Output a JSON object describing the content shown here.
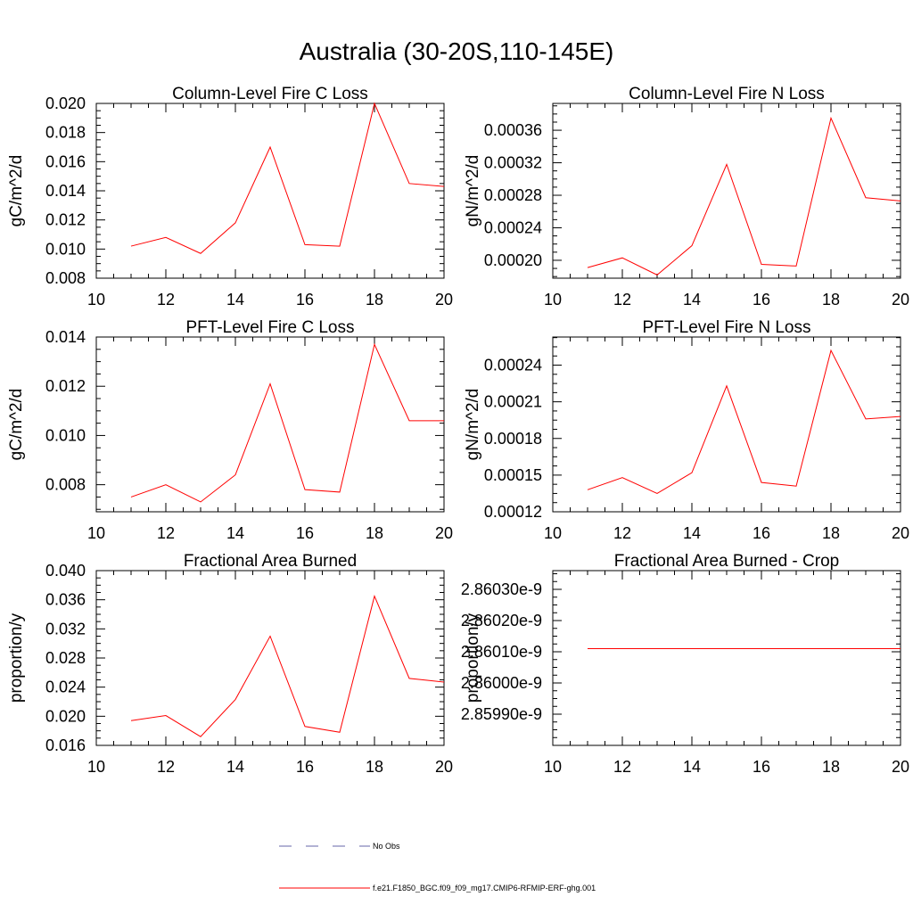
{
  "figure": {
    "title": "Australia (30-20S,110-145E)"
  },
  "legend": [
    {
      "label": "No Obs",
      "color": "#6666aa",
      "style": "dashed"
    },
    {
      "label": "f.e21.F1850_BGC.f09_f09_mg17.CMIP6-RFMIP-ERF-ghg.001",
      "color": "#ff0000",
      "style": "solid"
    }
  ],
  "chart_data": [
    {
      "type": "line",
      "title": "Column-Level Fire C Loss",
      "xlabel": "",
      "ylabel": "gC/m^2/d",
      "xlim": [
        10,
        20
      ],
      "ylim": [
        0.008,
        0.02
      ],
      "xticks": [
        "10",
        "12",
        "14",
        "16",
        "18",
        "20"
      ],
      "yticks": [
        "0.008",
        "0.010",
        "0.012",
        "0.014",
        "0.016",
        "0.018",
        "0.020"
      ],
      "series": [
        {
          "name": "f.e21.F1850_BGC.f09_f09_mg17.CMIP6-RFMIP-ERF-ghg.001",
          "color": "#ff0000",
          "x": [
            11,
            12,
            13,
            14,
            15,
            16,
            17,
            18,
            19,
            20
          ],
          "values": [
            0.0102,
            0.0108,
            0.0097,
            0.0118,
            0.017,
            0.0103,
            0.0102,
            0.02,
            0.0145,
            0.0143
          ]
        }
      ]
    },
    {
      "type": "line",
      "title": "Column-Level Fire N Loss",
      "xlabel": "",
      "ylabel": "gN/m^2/d",
      "xlim": [
        10,
        20
      ],
      "ylim": [
        0.000178,
        0.000393
      ],
      "xticks": [
        "10",
        "12",
        "14",
        "16",
        "18",
        "20"
      ],
      "yticks": [
        "0.00020",
        "0.00024",
        "0.00028",
        "0.00032",
        "0.00036"
      ],
      "series": [
        {
          "name": "f.e21.F1850_BGC.f09_f09_mg17.CMIP6-RFMIP-ERF-ghg.001",
          "color": "#ff0000",
          "x": [
            11,
            12,
            13,
            14,
            15,
            16,
            17,
            18,
            19,
            20
          ],
          "values": [
            0.000191,
            0.000203,
            0.000182,
            0.000218,
            0.000318,
            0.000195,
            0.000193,
            0.000375,
            0.000277,
            0.000273
          ]
        }
      ]
    },
    {
      "type": "line",
      "title": "PFT-Level Fire C Loss",
      "xlabel": "",
      "ylabel": "gC/m^2/d",
      "xlim": [
        10,
        20
      ],
      "ylim": [
        0.0069,
        0.014
      ],
      "xticks": [
        "10",
        "12",
        "14",
        "16",
        "18",
        "20"
      ],
      "yticks": [
        "0.008",
        "0.010",
        "0.012",
        "0.014"
      ],
      "series": [
        {
          "name": "f.e21.F1850_BGC.f09_f09_mg17.CMIP6-RFMIP-ERF-ghg.001",
          "color": "#ff0000",
          "x": [
            11,
            12,
            13,
            14,
            15,
            16,
            17,
            18,
            19,
            20
          ],
          "values": [
            0.0075,
            0.008,
            0.0073,
            0.0084,
            0.0121,
            0.0078,
            0.0077,
            0.0137,
            0.0106,
            0.0106
          ]
        }
      ]
    },
    {
      "type": "line",
      "title": "PFT-Level Fire N Loss",
      "xlabel": "",
      "ylabel": "gN/m^2/d",
      "xlim": [
        10,
        20
      ],
      "ylim": [
        0.00012,
        0.000263
      ],
      "xticks": [
        "10",
        "12",
        "14",
        "16",
        "18",
        "20"
      ],
      "yticks": [
        "0.00012",
        "0.00015",
        "0.00018",
        "0.00021",
        "0.00024"
      ],
      "series": [
        {
          "name": "f.e21.F1850_BGC.f09_f09_mg17.CMIP6-RFMIP-ERF-ghg.001",
          "color": "#ff0000",
          "x": [
            11,
            12,
            13,
            14,
            15,
            16,
            17,
            18,
            19,
            20
          ],
          "values": [
            0.000138,
            0.000148,
            0.000135,
            0.000152,
            0.000223,
            0.000144,
            0.000141,
            0.000252,
            0.000196,
            0.000198
          ]
        }
      ]
    },
    {
      "type": "line",
      "title": "Fractional Area Burned",
      "xlabel": "",
      "ylabel": "proportion/y",
      "xlim": [
        10,
        20
      ],
      "ylim": [
        0.016,
        0.04
      ],
      "xticks": [
        "10",
        "12",
        "14",
        "16",
        "18",
        "20"
      ],
      "yticks": [
        "0.016",
        "0.020",
        "0.024",
        "0.028",
        "0.032",
        "0.036",
        "0.040"
      ],
      "series": [
        {
          "name": "f.e21.F1850_BGC.f09_f09_mg17.CMIP6-RFMIP-ERF-ghg.001",
          "color": "#ff0000",
          "x": [
            11,
            12,
            13,
            14,
            15,
            16,
            17,
            18,
            19,
            20
          ],
          "values": [
            0.0194,
            0.0201,
            0.0172,
            0.0223,
            0.031,
            0.0186,
            0.0178,
            0.0365,
            0.0252,
            0.0247
          ]
        }
      ]
    },
    {
      "type": "line",
      "title": "Fractional Area Burned - Crop",
      "xlabel": "",
      "ylabel": "proportion/y",
      "xlim": [
        10,
        20
      ],
      "ylim": [
        2.8598e-09,
        2.86036e-09
      ],
      "xticks": [
        "10",
        "12",
        "14",
        "16",
        "18",
        "20"
      ],
      "yticks": [
        "2.85990e-9",
        "2.86000e-9",
        "2.86010e-9",
        "2.86020e-9",
        "2.86030e-9"
      ],
      "series": [
        {
          "name": "f.e21.F1850_BGC.f09_f09_mg17.CMIP6-RFMIP-ERF-ghg.001",
          "color": "#ff0000",
          "x": [
            11,
            12,
            13,
            14,
            15,
            16,
            17,
            18,
            19,
            20
          ],
          "values": [
            2.86011e-09,
            2.86011e-09,
            2.86011e-09,
            2.86011e-09,
            2.86011e-09,
            2.86011e-09,
            2.86011e-09,
            2.86011e-09,
            2.86011e-09,
            2.86011e-09
          ]
        }
      ]
    }
  ]
}
